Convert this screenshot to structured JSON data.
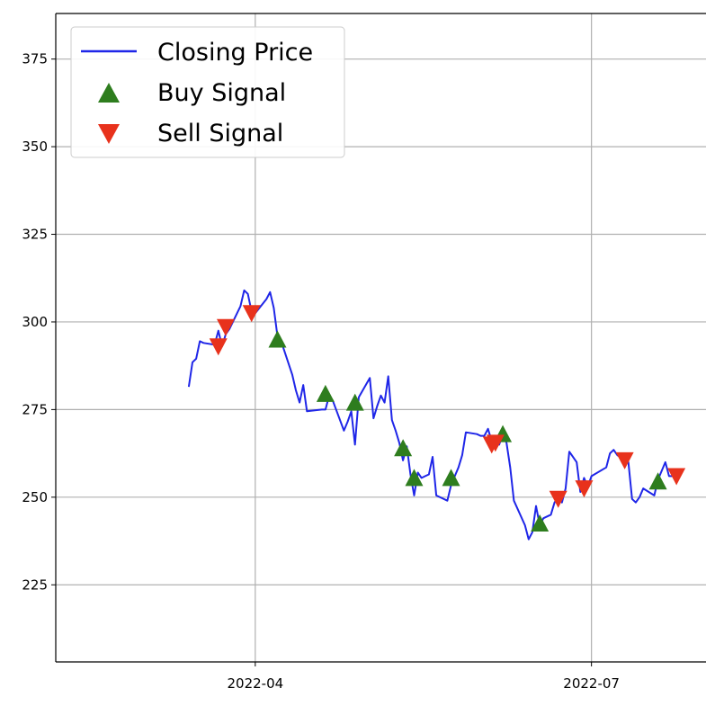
{
  "chart_data": {
    "type": "line",
    "grid": true,
    "legend_placement": "top-left",
    "xlim": [
      "2022-02-06",
      "2022-08-01"
    ],
    "ylim": [
      203,
      388
    ],
    "yticks": [
      225,
      250,
      275,
      300,
      325,
      350,
      375
    ],
    "xticks": [
      {
        "date": "2022-04-01",
        "label": "2022-04"
      },
      {
        "date": "2022-07-01",
        "label": "2022-07"
      }
    ],
    "legend": {
      "line_label": "Closing Price",
      "buy_label": "Buy Signal",
      "sell_label": "Sell Signal"
    },
    "colors": {
      "line": "#1f26e8",
      "buy": "#2e7d1e",
      "sell": "#e8321c",
      "grid": "#b0b0b0"
    },
    "series": [
      {
        "name": "Closing Price",
        "points": [
          [
            "2022-03-14",
            281.5
          ],
          [
            "2022-03-15",
            288.5
          ],
          [
            "2022-03-16",
            289.5
          ],
          [
            "2022-03-17",
            294.5
          ],
          [
            "2022-03-18",
            294.0
          ],
          [
            "2022-03-21",
            293.5
          ],
          [
            "2022-03-22",
            297.5
          ],
          [
            "2022-03-23",
            293.0
          ],
          [
            "2022-03-24",
            296.5
          ],
          [
            "2022-03-25",
            298.0
          ],
          [
            "2022-03-28",
            304.5
          ],
          [
            "2022-03-29",
            309.0
          ],
          [
            "2022-03-30",
            308.0
          ],
          [
            "2022-03-31",
            303.0
          ],
          [
            "2022-04-01",
            302.5
          ],
          [
            "2022-04-04",
            306.5
          ],
          [
            "2022-04-05",
            308.5
          ],
          [
            "2022-04-06",
            304.0
          ],
          [
            "2022-04-07",
            296.0
          ],
          [
            "2022-04-08",
            294.5
          ],
          [
            "2022-04-11",
            285.0
          ],
          [
            "2022-04-12",
            280.5
          ],
          [
            "2022-04-13",
            277.0
          ],
          [
            "2022-04-14",
            282.0
          ],
          [
            "2022-04-15",
            274.5
          ],
          [
            "2022-04-19",
            275.0
          ],
          [
            "2022-04-20",
            275.0
          ],
          [
            "2022-04-21",
            279.0
          ],
          [
            "2022-04-22",
            277.5
          ],
          [
            "2022-04-25",
            269.0
          ],
          [
            "2022-04-26",
            271.5
          ],
          [
            "2022-04-27",
            274.5
          ],
          [
            "2022-04-28",
            265.0
          ],
          [
            "2022-04-29",
            278.5
          ],
          [
            "2022-05-02",
            284.0
          ],
          [
            "2022-05-03",
            272.5
          ],
          [
            "2022-05-04",
            276.0
          ],
          [
            "2022-05-05",
            279.0
          ],
          [
            "2022-05-06",
            277.0
          ],
          [
            "2022-05-07",
            284.5
          ],
          [
            "2022-05-08",
            272.0
          ],
          [
            "2022-05-09",
            269.0
          ],
          [
            "2022-05-10",
            265.5
          ],
          [
            "2022-05-11",
            260.5
          ],
          [
            "2022-05-12",
            264.5
          ],
          [
            "2022-05-13",
            256.5
          ],
          [
            "2022-05-14",
            250.5
          ],
          [
            "2022-05-15",
            257.0
          ],
          [
            "2022-05-16",
            255.5
          ],
          [
            "2022-05-17",
            256.0
          ],
          [
            "2022-05-18",
            256.5
          ],
          [
            "2022-05-19",
            261.5
          ],
          [
            "2022-05-20",
            250.5
          ],
          [
            "2022-05-23",
            249.0
          ],
          [
            "2022-05-24",
            253.5
          ],
          [
            "2022-05-25",
            256.0
          ],
          [
            "2022-05-26",
            258.5
          ],
          [
            "2022-05-27",
            262.0
          ],
          [
            "2022-05-28",
            268.5
          ],
          [
            "2022-05-31",
            268.0
          ],
          [
            "2022-06-01",
            267.5
          ],
          [
            "2022-06-02",
            267.5
          ],
          [
            "2022-06-03",
            269.5
          ],
          [
            "2022-06-04",
            266.0
          ],
          [
            "2022-06-05",
            266.0
          ],
          [
            "2022-06-06",
            265.0
          ],
          [
            "2022-06-07",
            268.0
          ],
          [
            "2022-06-08",
            265.5
          ],
          [
            "2022-06-09",
            258.5
          ],
          [
            "2022-06-10",
            249.0
          ],
          [
            "2022-06-13",
            242.0
          ],
          [
            "2022-06-14",
            238.0
          ],
          [
            "2022-06-15",
            240.0
          ],
          [
            "2022-06-16",
            247.5
          ],
          [
            "2022-06-17",
            242.0
          ],
          [
            "2022-06-18",
            244.0
          ],
          [
            "2022-06-20",
            245.0
          ],
          [
            "2022-06-21",
            248.5
          ],
          [
            "2022-06-22",
            250.0
          ],
          [
            "2022-06-23",
            248.5
          ],
          [
            "2022-06-24",
            252.5
          ],
          [
            "2022-06-25",
            263.0
          ],
          [
            "2022-06-27",
            260.0
          ],
          [
            "2022-06-28",
            251.5
          ],
          [
            "2022-06-29",
            255.5
          ],
          [
            "2022-06-30",
            253.0
          ],
          [
            "2022-07-01",
            256.0
          ],
          [
            "2022-07-05",
            258.5
          ],
          [
            "2022-07-06",
            262.5
          ],
          [
            "2022-07-07",
            263.5
          ],
          [
            "2022-07-08",
            262.0
          ],
          [
            "2022-07-11",
            260.0
          ],
          [
            "2022-07-12",
            249.5
          ],
          [
            "2022-07-13",
            248.5
          ],
          [
            "2022-07-14",
            250.0
          ],
          [
            "2022-07-15",
            252.5
          ],
          [
            "2022-07-18",
            250.5
          ],
          [
            "2022-07-19",
            255.0
          ],
          [
            "2022-07-20",
            257.5
          ],
          [
            "2022-07-21",
            260.0
          ],
          [
            "2022-07-22",
            256.0
          ],
          [
            "2022-07-25",
            256.0
          ]
        ]
      }
    ],
    "buy_signals": [
      [
        "2022-04-07",
        295.0
      ],
      [
        "2022-04-20",
        279.5
      ],
      [
        "2022-04-28",
        277.0
      ],
      [
        "2022-05-11",
        264.0
      ],
      [
        "2022-05-14",
        255.5
      ],
      [
        "2022-05-24",
        255.5
      ],
      [
        "2022-06-07",
        268.0
      ],
      [
        "2022-06-17",
        242.5
      ],
      [
        "2022-07-19",
        254.5
      ]
    ],
    "sell_signals": [
      [
        "2022-03-22",
        293.0
      ],
      [
        "2022-03-24",
        298.5
      ],
      [
        "2022-03-31",
        302.5
      ],
      [
        "2022-06-04",
        265.0
      ],
      [
        "2022-06-05",
        265.5
      ],
      [
        "2022-06-22",
        249.5
      ],
      [
        "2022-06-29",
        252.5
      ],
      [
        "2022-07-10",
        260.5
      ],
      [
        "2022-07-24",
        256.0
      ]
    ]
  }
}
